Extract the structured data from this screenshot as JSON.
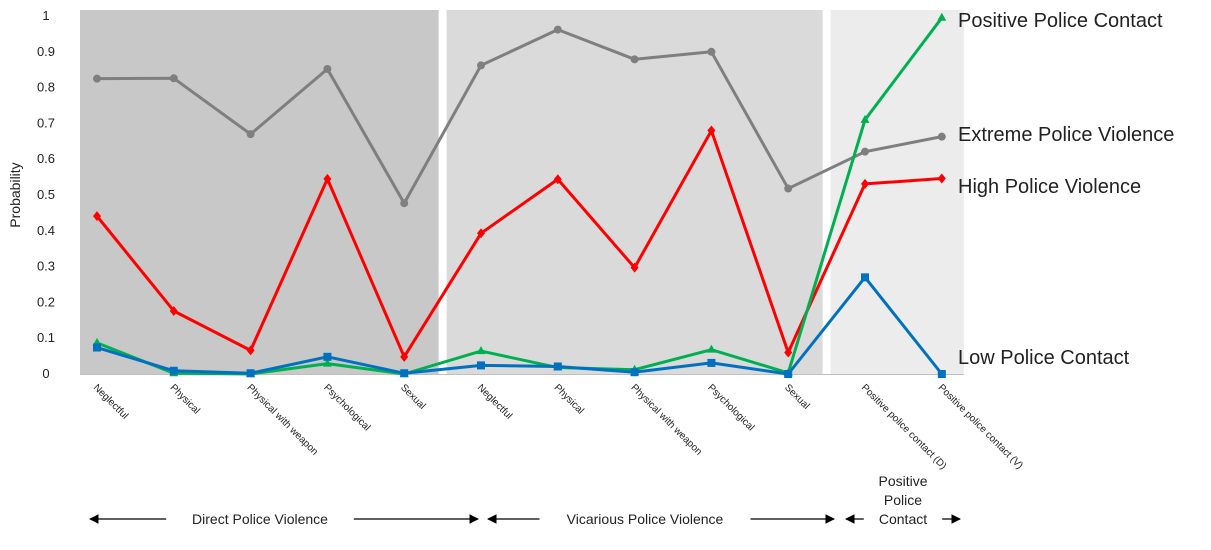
{
  "chart_data": {
    "type": "line",
    "ylabel": "Probability",
    "ylim": [
      0,
      1
    ],
    "yticks": [
      "0",
      "0.1",
      "0.2",
      "0.3",
      "0.4",
      "0.5",
      "0.6",
      "0.7",
      "0.8",
      "0.9",
      "1"
    ],
    "categories": [
      "Neglectful",
      "Physical",
      "Physical with weapon",
      "Psychological",
      "Sexual",
      "Neglectful",
      "Physical",
      "Physical with weapon",
      "Psychological",
      "Sexual",
      "Positive police contact (D)",
      "Positive police contact (V)"
    ],
    "groups": [
      {
        "label": [
          "Direct Police Violence"
        ],
        "start": 0,
        "end": 4,
        "shade": "#c8c8c8"
      },
      {
        "label": [
          "Vicarious Police Violence"
        ],
        "start": 5,
        "end": 9,
        "shade": "#dadada"
      },
      {
        "label": [
          "Positive",
          "Police",
          "Contact"
        ],
        "start": 10,
        "end": 11,
        "shade": "#ececec"
      }
    ],
    "series": [
      {
        "name": "Extreme Police Violence",
        "color": "#7f7f7f",
        "marker": "circle",
        "values": [
          0.825,
          0.826,
          0.67,
          0.852,
          0.477,
          0.862,
          0.962,
          0.879,
          0.9,
          0.518,
          0.621,
          0.663
        ]
      },
      {
        "name": "High Police Violence",
        "color": "#ff0000",
        "marker": "diamond",
        "values": [
          0.441,
          0.176,
          0.066,
          0.545,
          0.048,
          0.393,
          0.544,
          0.297,
          0.68,
          0.06,
          0.531,
          0.546
        ]
      },
      {
        "name": "Positive Police Contact",
        "color": "#00b050",
        "marker": "triangle",
        "values": [
          0.087,
          0.002,
          0.0,
          0.029,
          0.0,
          0.064,
          0.018,
          0.012,
          0.068,
          0.003,
          0.71,
          0.995
        ]
      },
      {
        "name": "Low Police Contact",
        "color": "#0070c0",
        "marker": "square",
        "values": [
          0.074,
          0.009,
          0.002,
          0.048,
          0.002,
          0.024,
          0.021,
          0.005,
          0.031,
          0.0,
          0.27,
          0.0
        ]
      }
    ]
  }
}
